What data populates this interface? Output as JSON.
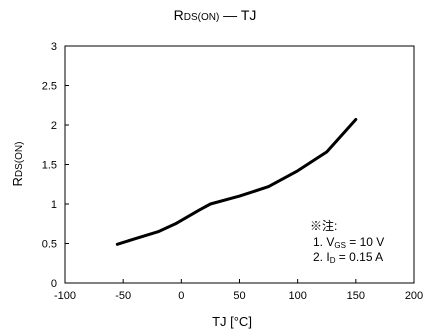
{
  "chart_data": {
    "type": "line",
    "title_main": "R",
    "title_sub": "DS(ON)",
    "title_tail": " — TJ",
    "xlabel": "TJ [°C]",
    "ylabel_main": "R",
    "ylabel_sub": "DS(ON)",
    "xlim": [
      -100,
      200
    ],
    "ylim": [
      0,
      3
    ],
    "x_ticks": [
      "-100",
      "-50",
      "0",
      "50",
      "100",
      "150",
      "200"
    ],
    "y_ticks": [
      "0",
      "0.5",
      "1",
      "1.5",
      "2",
      "2.5",
      "3"
    ],
    "grid": false,
    "series": [
      {
        "color": "#000000",
        "x": [
          -55,
          -40,
          -20,
          -5,
          15,
          25,
          50,
          75,
          100,
          125,
          150
        ],
        "y": [
          0.49,
          0.56,
          0.65,
          0.75,
          0.92,
          1.0,
          1.1,
          1.22,
          1.42,
          1.66,
          2.07
        ]
      }
    ],
    "annotation": {
      "header": "※注:",
      "line1_prefix": "1. V",
      "line1_sub": "GS",
      "line1_value": " = 10 V",
      "line2_prefix": "2. I",
      "line2_sub": "D",
      "line2_value": " = 0.15 A"
    }
  }
}
